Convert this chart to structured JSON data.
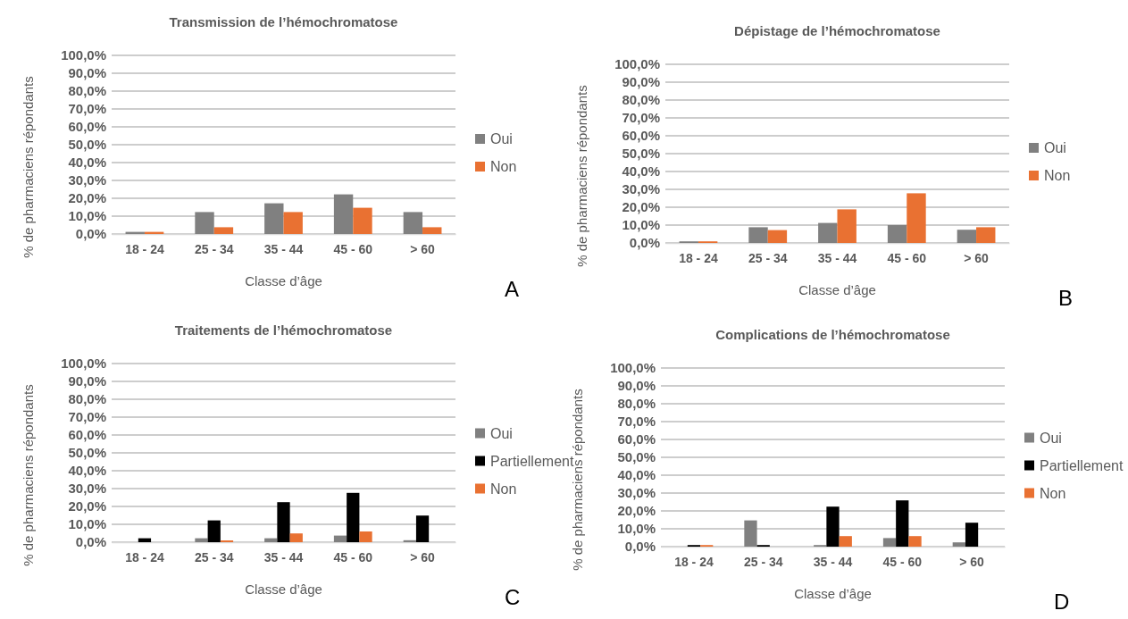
{
  "chart_data": [
    {
      "type": "bar",
      "title": "Transmission de l’hémochromatose",
      "xlabel": "Classe d’âge",
      "ylabel": "% de pharmaciens répondants",
      "categories": [
        "18 - 24",
        "25 - 34",
        "35 - 44",
        "45 - 60",
        "> 60"
      ],
      "series": [
        {
          "name": "Oui",
          "color": "#808080",
          "values": [
            1.2,
            12.3,
            17.2,
            22.2,
            12.3
          ]
        },
        {
          "name": "Non",
          "color": "#e97132",
          "values": [
            1.2,
            3.8,
            12.3,
            14.7,
            3.8
          ]
        }
      ],
      "ylim": [
        0,
        100
      ],
      "yticks": [
        {
          "value": 0,
          "label": "0,0%"
        },
        {
          "value": 10,
          "label": "10,0%"
        },
        {
          "value": 20,
          "label": "20,0%"
        },
        {
          "value": 30,
          "label": "30,0%"
        },
        {
          "value": 40,
          "label": "40,0%"
        },
        {
          "value": 50,
          "label": "50,0%"
        },
        {
          "value": 60,
          "label": "60,0%"
        },
        {
          "value": 70,
          "label": "70,0%"
        },
        {
          "value": 80,
          "label": "80,0%"
        },
        {
          "value": 90,
          "label": "90,0%"
        },
        {
          "value": 100,
          "label": "100,0%"
        }
      ],
      "grid": "y",
      "legend": "right",
      "annotations": [
        "A"
      ]
    },
    {
      "type": "bar",
      "title": "Dépistage de l’hémochromatose",
      "xlabel": "Classe d’âge",
      "ylabel": "% de pharmaciens répondants",
      "categories": [
        "18 - 24",
        "25 - 34",
        "35 - 44",
        "45 - 60",
        "> 60"
      ],
      "series": [
        {
          "name": "Oui",
          "color": "#808080",
          "values": [
            0.9,
            8.8,
            11.2,
            10,
            7.4
          ]
        },
        {
          "name": "Non",
          "color": "#e97132",
          "values": [
            0.9,
            7.2,
            18.8,
            27.8,
            8.8
          ]
        }
      ],
      "ylim": [
        0,
        100
      ],
      "yticks": [
        {
          "value": 0,
          "label": "0,0%"
        },
        {
          "value": 10,
          "label": "10,0%"
        },
        {
          "value": 20,
          "label": "20,0%"
        },
        {
          "value": 30,
          "label": "30,0%"
        },
        {
          "value": 40,
          "label": "40,0%"
        },
        {
          "value": 50,
          "label": "50,0%"
        },
        {
          "value": 60,
          "label": "60,0%"
        },
        {
          "value": 70,
          "label": "70,0%"
        },
        {
          "value": 80,
          "label": "80,0%"
        },
        {
          "value": 90,
          "label": "90,0%"
        },
        {
          "value": 100,
          "label": "100,0%"
        }
      ],
      "grid": "y",
      "legend": "right",
      "annotations": [
        "B"
      ]
    },
    {
      "type": "bar",
      "title": "Traitements de l’hémochromatose",
      "xlabel": "Classe d’âge",
      "ylabel": "% de pharmaciens répondants",
      "categories": [
        "18 - 24",
        "25 - 34",
        "35 - 44",
        "45 - 60",
        "> 60"
      ],
      "series": [
        {
          "name": "Oui",
          "color": "#808080",
          "values": [
            0,
            2.2,
            2.2,
            3.7,
            1.1
          ]
        },
        {
          "name": "Partiellement",
          "color": "#000000",
          "values": [
            2.2,
            12.2,
            22.4,
            27.6,
            14.9
          ]
        },
        {
          "name": "Non",
          "color": "#e97132",
          "values": [
            0,
            1,
            4.9,
            6,
            0
          ]
        }
      ],
      "ylim": [
        0,
        100
      ],
      "yticks": [
        {
          "value": 0,
          "label": "0,0%"
        },
        {
          "value": 10,
          "label": "10,0%"
        },
        {
          "value": 20,
          "label": "20,0%"
        },
        {
          "value": 30,
          "label": "30,0%"
        },
        {
          "value": 40,
          "label": "40,0%"
        },
        {
          "value": 50,
          "label": "50,0%"
        },
        {
          "value": 60,
          "label": "60,0%"
        },
        {
          "value": 70,
          "label": "70,0%"
        },
        {
          "value": 80,
          "label": "80,0%"
        },
        {
          "value": 90,
          "label": "90,0%"
        },
        {
          "value": 100,
          "label": "100,0%"
        }
      ],
      "grid": "y",
      "legend": "right",
      "annotations": [
        "C"
      ]
    },
    {
      "type": "bar",
      "title": "Complications de l’hémochromatose",
      "xlabel": "Classe d’âge",
      "ylabel": "% de pharmaciens répondants",
      "categories": [
        "18 - 24",
        "25 - 34",
        "35 - 44",
        "45 - 60",
        "> 60"
      ],
      "series": [
        {
          "name": "Oui",
          "color": "#808080",
          "values": [
            0,
            14.7,
            0.9,
            4.8,
            2.4
          ]
        },
        {
          "name": "Partiellement",
          "color": "#000000",
          "values": [
            0.9,
            0.9,
            22.4,
            25.9,
            13.4
          ]
        },
        {
          "name": "Non",
          "color": "#e97132",
          "values": [
            0.9,
            0,
            5.9,
            5.9,
            0
          ]
        }
      ],
      "ylim": [
        0,
        100
      ],
      "yticks": [
        {
          "value": 0,
          "label": "0,0%"
        },
        {
          "value": 10,
          "label": "10,0%"
        },
        {
          "value": 20,
          "label": "20,0%"
        },
        {
          "value": 30,
          "label": "30,0%"
        },
        {
          "value": 40,
          "label": "40,0%"
        },
        {
          "value": 50,
          "label": "50,0%"
        },
        {
          "value": 60,
          "label": "60,0%"
        },
        {
          "value": 70,
          "label": "70,0%"
        },
        {
          "value": 80,
          "label": "80,0%"
        },
        {
          "value": 90,
          "label": "90,0%"
        },
        {
          "value": 100,
          "label": "100,0%"
        }
      ],
      "grid": "y",
      "legend": "right",
      "annotations": [
        "D"
      ]
    }
  ]
}
